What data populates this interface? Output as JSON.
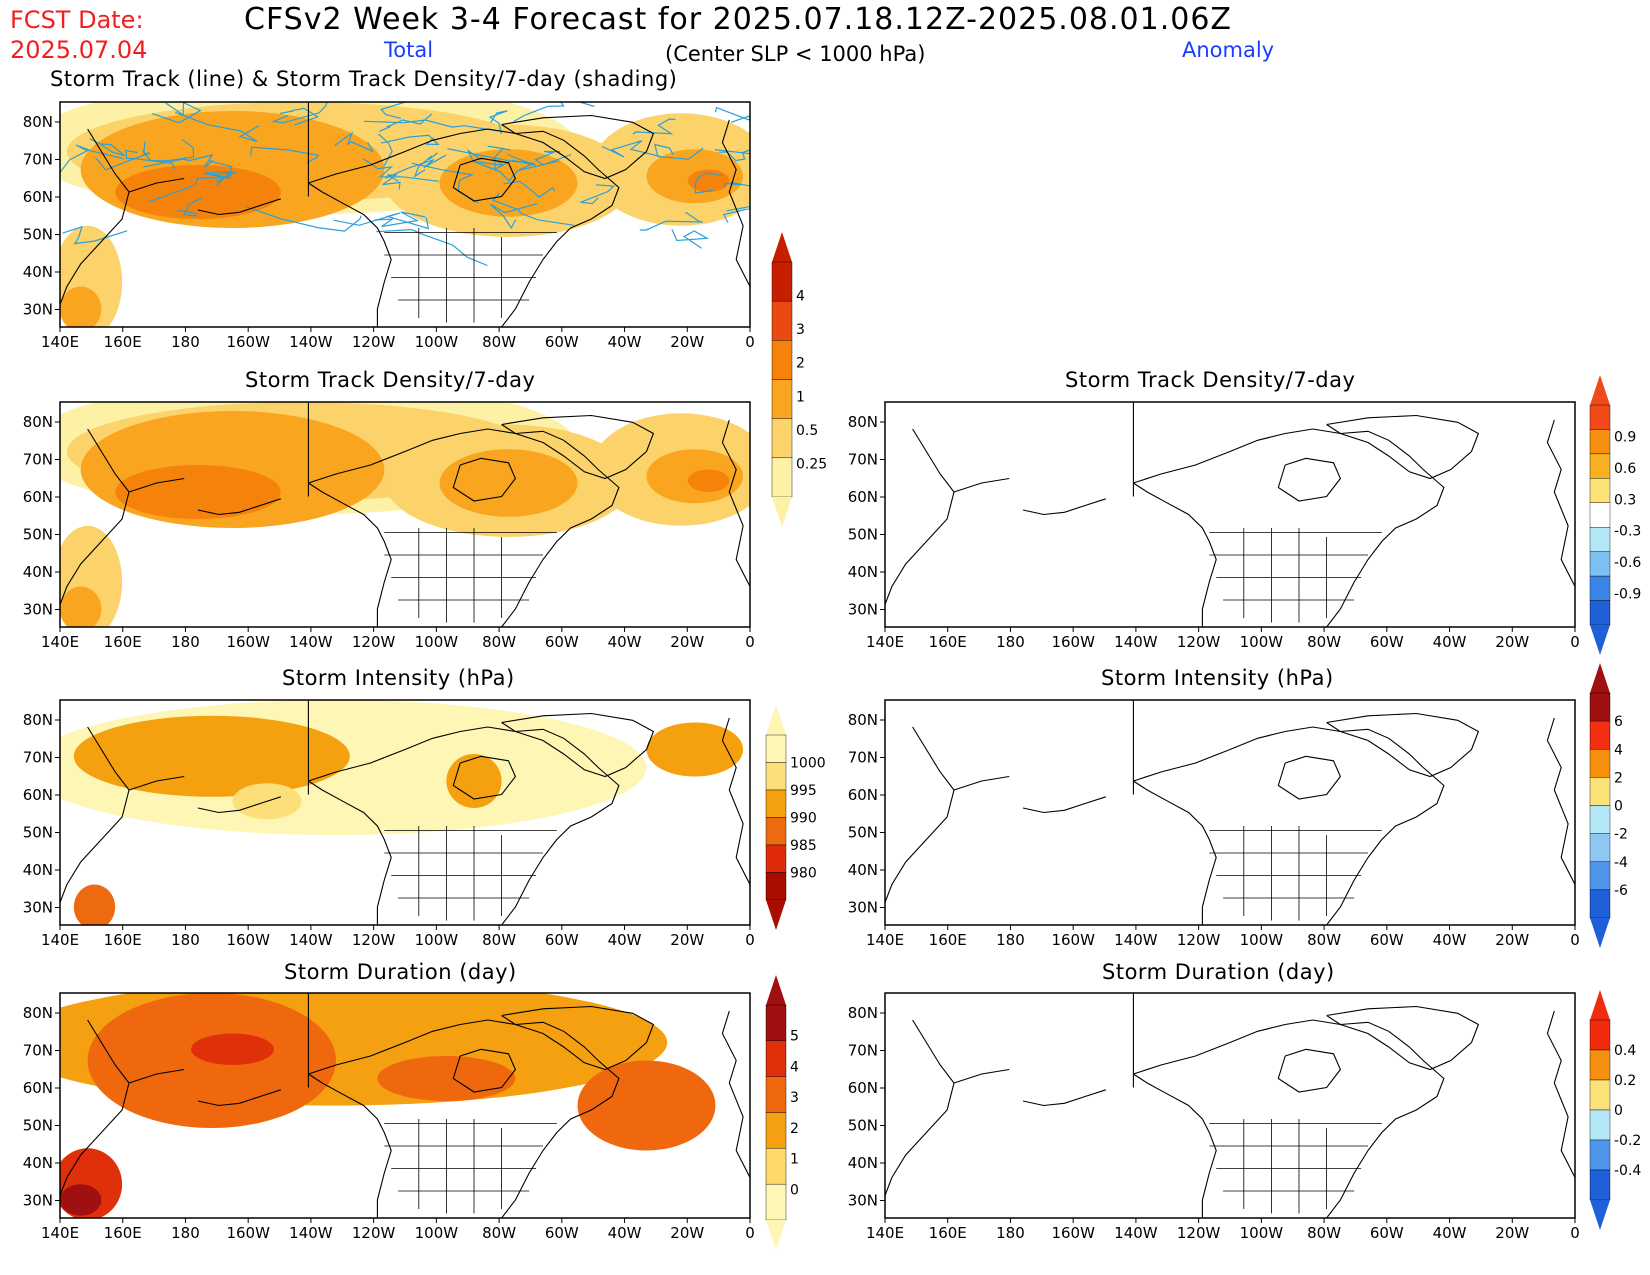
{
  "header": {
    "fcst_label": "FCST Date:",
    "fcst_date": "2025.07.04",
    "title": "CFSv2 Week 3-4 Forecast for 2025.07.18.12Z-2025.08.01.06Z",
    "total_label": "Total",
    "subtitle": "(Center SLP < 1000 hPa)",
    "anomaly_label": "Anomaly",
    "storm_track_title": "Storm Track (line) & Storm Track Density/7-day (shading)"
  },
  "axes": {
    "lat_labels": [
      "80N",
      "70N",
      "60N",
      "50N",
      "40N",
      "30N"
    ],
    "lon_labels": [
      "140E",
      "160E",
      "180",
      "160W",
      "140W",
      "120W",
      "100W",
      "80W",
      "60W",
      "40W",
      "20W",
      "0"
    ]
  },
  "panels": [
    {
      "id": "track-total",
      "title": "",
      "field": "track_density",
      "type": "total"
    },
    {
      "id": "density-total",
      "title": "Storm Track Density/7-day",
      "field": "track_density",
      "type": "total"
    },
    {
      "id": "density-anom",
      "title": "Storm Track Density/7-day",
      "field": "track_density",
      "type": "anomaly"
    },
    {
      "id": "intensity-total",
      "title": "Storm Intensity (hPa)",
      "field": "intensity",
      "type": "total"
    },
    {
      "id": "intensity-anom",
      "title": "Storm Intensity (hPa)",
      "field": "intensity",
      "type": "anomaly"
    },
    {
      "id": "duration-total",
      "title": "Storm Duration (day)",
      "field": "duration",
      "type": "total"
    },
    {
      "id": "duration-anom",
      "title": "Storm Duration (day)",
      "field": "duration",
      "type": "anomaly"
    }
  ],
  "colorbars": {
    "density_total": {
      "labels": [
        "4",
        "3",
        "2",
        "1",
        "0.5",
        "0.25"
      ],
      "colors": [
        "#c81e00",
        "#e84a10",
        "#f5820a",
        "#f9a51f",
        "#fbd36a",
        "#fdf1a6"
      ]
    },
    "density_anom": {
      "labels": [
        "0.9",
        "0.6",
        "0.3",
        "-0.3",
        "-0.6",
        "-0.9"
      ],
      "colors": [
        "#f04a1a",
        "#f59010",
        "#f7b020",
        "#fde27a",
        "#ffffff",
        "#b5e8f6",
        "#7bc0f0",
        "#3a86e8",
        "#1f5fd8"
      ]
    },
    "intensity_total": {
      "labels": [
        "1000",
        "995",
        "990",
        "985",
        "980"
      ],
      "colors": [
        "#fdf6b4",
        "#fddf7a",
        "#f5a10f",
        "#ee6a10",
        "#e02b0a",
        "#a80d00"
      ]
    },
    "intensity_anom": {
      "labels": [
        "6",
        "4",
        "2",
        "0",
        "-2",
        "-4",
        "-6"
      ],
      "colors": [
        "#a01010",
        "#f03010",
        "#f5900c",
        "#fde27a",
        "#b5e8f6",
        "#8ec8f2",
        "#4f95ea",
        "#1f5fd8"
      ]
    },
    "duration_total": {
      "labels": [
        "5",
        "4",
        "3",
        "2",
        "1",
        "0"
      ],
      "colors": [
        "#a01010",
        "#e0300a",
        "#f0680e",
        "#f5a010",
        "#fdd86a",
        "#fdf6b4"
      ]
    },
    "duration_anom": {
      "labels": [
        "0.4",
        "0.2",
        "0",
        "-0.2",
        "-0.4"
      ],
      "colors": [
        "#f02c0c",
        "#f59010",
        "#fde27a",
        "#b5e8f6",
        "#4f95ea",
        "#1f5fd8"
      ]
    }
  },
  "colors": {
    "header_red": "#f02020",
    "header_blue": "#1a3cff",
    "track_line": "#2aa0d8"
  }
}
